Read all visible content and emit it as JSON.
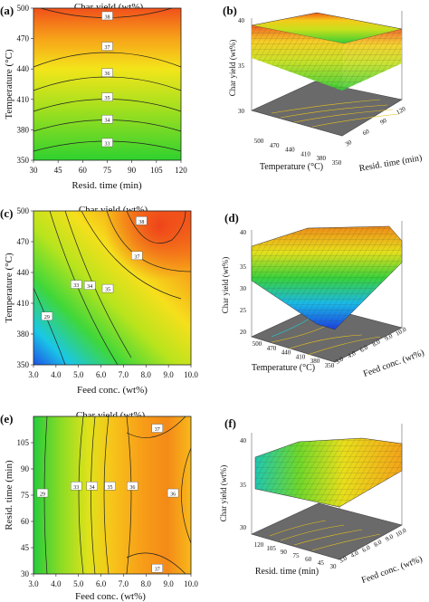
{
  "chart_data": [
    {
      "panel": "(a)",
      "type": "contour",
      "title": "Char yield (wt%)",
      "xlabel": "Resid. time (min)",
      "ylabel": "Temperature (°C)",
      "x_ticks": [
        "30",
        "45",
        "60",
        "75",
        "90",
        "105",
        "120"
      ],
      "y_ticks": [
        "350",
        "380",
        "410",
        "440",
        "470",
        "500"
      ],
      "xlim": [
        30,
        120
      ],
      "ylim": [
        350,
        500
      ],
      "contours": [
        {
          "label": "33",
          "x": 75,
          "y": 367
        },
        {
          "label": "34",
          "x": 75,
          "y": 390
        },
        {
          "label": "35",
          "x": 75,
          "y": 412
        },
        {
          "label": "36",
          "x": 75,
          "y": 436
        },
        {
          "label": "37",
          "x": 75,
          "y": 462
        },
        {
          "label": "38",
          "x": 75,
          "y": 492
        }
      ]
    },
    {
      "panel": "(b)",
      "type": "surface",
      "zlabel": "Char yield (wt%)",
      "xlabel": "Temperature (°C)",
      "ylabel": "Resid. time (min)",
      "z_ticks": [
        "30",
        "35",
        "40"
      ],
      "x_ticks": [
        "500",
        "470",
        "440",
        "410",
        "380",
        "350"
      ],
      "y_ticks": [
        "30",
        "60",
        "90",
        "120"
      ]
    },
    {
      "panel": "(c)",
      "type": "contour",
      "title": "Char yield (wt%)",
      "xlabel": "Feed conc. (wt%)",
      "ylabel": "Temperature (°C)",
      "x_ticks": [
        "3.0",
        "4.0",
        "5.0",
        "6.0",
        "7.0",
        "8.0",
        "9.0",
        "10.0"
      ],
      "y_ticks": [
        "350",
        "380",
        "410",
        "440",
        "470",
        "500"
      ],
      "xlim": [
        3,
        10
      ],
      "ylim": [
        350,
        500
      ],
      "contours": [
        {
          "label": "29",
          "x": 3.6,
          "y": 397
        },
        {
          "label": "33",
          "x": 4.9,
          "y": 428
        },
        {
          "label": "34",
          "x": 5.5,
          "y": 427
        },
        {
          "label": "35",
          "x": 6.3,
          "y": 424
        },
        {
          "label": "37",
          "x": 7.6,
          "y": 456
        },
        {
          "label": "38",
          "x": 7.8,
          "y": 490
        }
      ]
    },
    {
      "panel": "(d)",
      "type": "surface",
      "zlabel": "Char yield (wt%)",
      "xlabel": "Temperature (°C)",
      "ylabel": "Feed conc. (wt%)",
      "z_ticks": [
        "20",
        "25",
        "30",
        "35",
        "40"
      ],
      "x_ticks": [
        "500",
        "470",
        "440",
        "410",
        "380",
        "350"
      ],
      "y_ticks": [
        "3.0",
        "4.0",
        "6.0",
        "8.0",
        "9.0",
        "10.0"
      ]
    },
    {
      "panel": "(e)",
      "type": "contour",
      "title": "Char yield (wt%)",
      "xlabel": "Feed conc. (wt%)",
      "ylabel": "Resid. time (min)",
      "x_ticks": [
        "3.0",
        "4.0",
        "5.0",
        "6.0",
        "7.0",
        "8.0",
        "9.0",
        "10.0"
      ],
      "y_ticks": [
        "30",
        "45",
        "60",
        "75",
        "90",
        "105"
      ],
      "xlim": [
        3,
        10
      ],
      "ylim": [
        30,
        120
      ],
      "contours": [
        {
          "label": "29",
          "x": 3.4,
          "y": 76
        },
        {
          "label": "33",
          "x": 4.9,
          "y": 80
        },
        {
          "label": "34",
          "x": 5.6,
          "y": 80
        },
        {
          "label": "35",
          "x": 6.4,
          "y": 80
        },
        {
          "label": "36",
          "x": 7.4,
          "y": 80
        },
        {
          "label": "36",
          "x": 9.2,
          "y": 76
        },
        {
          "label": "37",
          "x": 8.5,
          "y": 113
        },
        {
          "label": "37",
          "x": 8.5,
          "y": 33
        }
      ]
    },
    {
      "panel": "(f)",
      "type": "surface",
      "zlabel": "Char yield (wt%)",
      "xlabel": "Resid. time (min)",
      "ylabel": "Feed conc. (wt%)",
      "z_ticks": [
        "30",
        "35",
        "40"
      ],
      "x_ticks": [
        "120",
        "105",
        "90",
        "75",
        "60",
        "45",
        "30"
      ],
      "y_ticks": [
        "3.0",
        "4.0",
        "6.0",
        "8.0",
        "9.0",
        "10.0"
      ]
    }
  ]
}
